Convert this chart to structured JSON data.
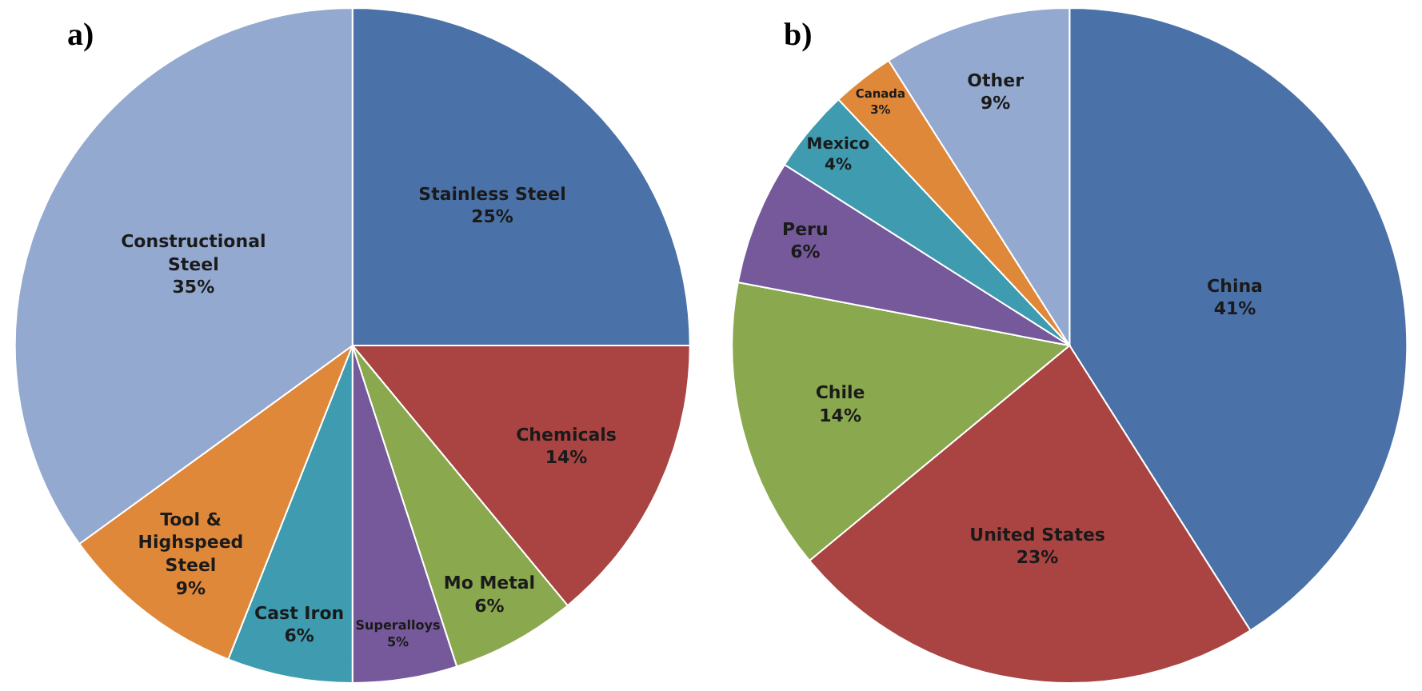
{
  "chart_data": [
    {
      "type": "pie",
      "title": "a)",
      "categories": [
        "Stainless Steel",
        "Chemicals",
        "Mo Metal",
        "Superalloys",
        "Cast Iron",
        "Tool &\nHighspeed\nSteel",
        "Constructional\nSteel"
      ],
      "values": [
        25,
        14,
        6,
        5,
        6,
        9,
        35
      ],
      "value_labels": [
        "25%",
        "14%",
        "6%",
        "5%",
        "6%",
        "9%",
        "35%"
      ],
      "colors": [
        "#4a72a8",
        "#a94442",
        "#8aa84e",
        "#75599a",
        "#3e9bb0",
        "#e0883a",
        "#94a9d0"
      ],
      "legend": false
    },
    {
      "type": "pie",
      "title": "b)",
      "categories": [
        "China",
        "United States",
        "Chile",
        "Peru",
        "Mexico",
        "Canada",
        "Other"
      ],
      "values": [
        41,
        23,
        14,
        6,
        4,
        3,
        9
      ],
      "value_labels": [
        "41%",
        "23%",
        "14%",
        "6%",
        "4%",
        "3%",
        "9%"
      ],
      "colors": [
        "#4a72a8",
        "#a94442",
        "#8aa84e",
        "#75599a",
        "#3e9bb0",
        "#e0883a",
        "#94a9d0"
      ],
      "legend": false
    }
  ]
}
